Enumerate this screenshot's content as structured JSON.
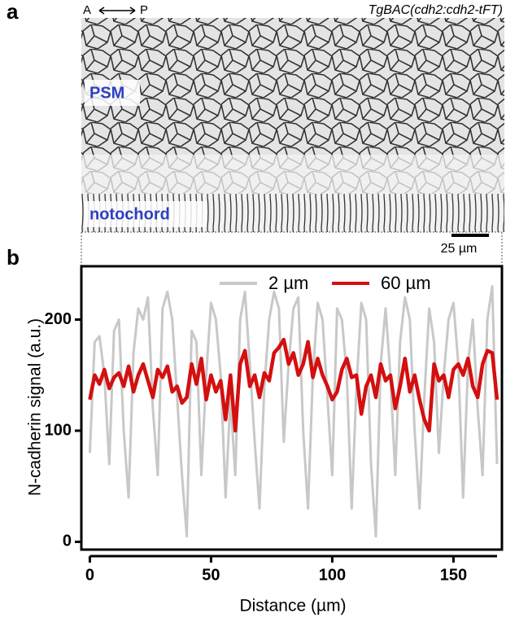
{
  "panel_a": {
    "label": "a",
    "axis_a": "A",
    "axis_p": "P",
    "transgene": "TgBAC(cdh2:cdh2-tFT)",
    "region_labels": [
      "PSM",
      "notochord"
    ],
    "scale_bar": "25 µm"
  },
  "panel_b_label": "b",
  "chart_data": {
    "type": "line",
    "xlabel": "Distance (µm)",
    "ylabel": "N-cadherin signal (a.u.)",
    "x": [
      0,
      2,
      4,
      6,
      8,
      10,
      12,
      14,
      16,
      18,
      20,
      22,
      24,
      26,
      28,
      30,
      32,
      34,
      36,
      38,
      40,
      42,
      44,
      46,
      48,
      50,
      52,
      54,
      56,
      58,
      60,
      62,
      64,
      66,
      68,
      70,
      72,
      74,
      76,
      78,
      80,
      82,
      84,
      86,
      88,
      90,
      92,
      94,
      96,
      98,
      100,
      102,
      104,
      106,
      108,
      110,
      112,
      114,
      116,
      118,
      120,
      122,
      124,
      126,
      128,
      130,
      132,
      134,
      136,
      138,
      140,
      142,
      144,
      146,
      148,
      150,
      152,
      154,
      156,
      158,
      160,
      162,
      164,
      166,
      168
    ],
    "series": [
      {
        "name": "2 µm",
        "color": "#c8c8c8",
        "values": [
          80,
          180,
          185,
          150,
          70,
          190,
          200,
          100,
          40,
          170,
          210,
          200,
          220,
          120,
          60,
          210,
          225,
          200,
          130,
          60,
          5,
          190,
          180,
          60,
          150,
          215,
          200,
          150,
          40,
          130,
          60,
          200,
          225,
          160,
          90,
          30,
          140,
          200,
          225,
          210,
          90,
          160,
          210,
          220,
          100,
          30,
          150,
          215,
          200,
          130,
          60,
          210,
          200,
          150,
          30,
          140,
          215,
          200,
          70,
          5,
          160,
          210,
          150,
          60,
          180,
          220,
          200,
          100,
          30,
          130,
          210,
          180,
          80,
          150,
          200,
          215,
          160,
          40,
          160,
          200,
          120,
          60,
          200,
          230,
          70
        ]
      },
      {
        "name": "60 µm",
        "color": "#d40f0f",
        "values": [
          128,
          150,
          142,
          155,
          138,
          148,
          152,
          140,
          158,
          135,
          150,
          160,
          145,
          130,
          155,
          148,
          158,
          135,
          140,
          125,
          130,
          160,
          142,
          165,
          128,
          150,
          135,
          145,
          110,
          150,
          100,
          160,
          172,
          140,
          150,
          130,
          152,
          145,
          170,
          175,
          182,
          160,
          170,
          150,
          160,
          180,
          148,
          165,
          150,
          140,
          128,
          135,
          155,
          165,
          148,
          150,
          115,
          140,
          150,
          130,
          160,
          145,
          150,
          120,
          140,
          165,
          135,
          150,
          128,
          110,
          100,
          160,
          145,
          150,
          130,
          155,
          160,
          150,
          165,
          140,
          130,
          160,
          172,
          170,
          128
        ]
      }
    ],
    "xlim": [
      -3.5,
      170
    ],
    "ylim": [
      -7,
      248
    ],
    "xticks": [
      0,
      50,
      100,
      150
    ],
    "yticks": [
      0,
      100,
      200
    ],
    "legend": "top"
  }
}
